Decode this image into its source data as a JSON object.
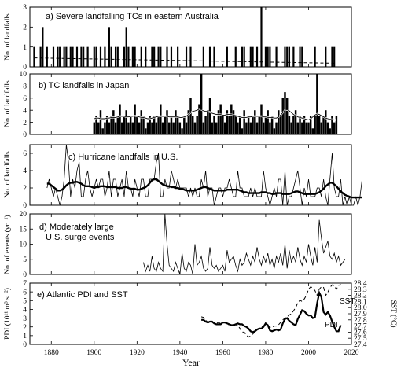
{
  "figure": {
    "x_label": "Year",
    "x_ticks": [
      1880,
      1900,
      1920,
      1940,
      1960,
      1980,
      2000,
      2020
    ],
    "x_range": [
      1870,
      2020
    ]
  },
  "chart_data": [
    {
      "id": "a",
      "type": "bar",
      "title": "a) Severe landfalling TCs in eastern Australia",
      "ylabel": "No. of landfalls",
      "ylim": [
        0,
        3
      ],
      "yticks": [
        0,
        1,
        2,
        3
      ],
      "x": [
        1872,
        1873,
        1874,
        1875,
        1876,
        1877,
        1878,
        1879,
        1880,
        1881,
        1882,
        1883,
        1884,
        1885,
        1886,
        1887,
        1888,
        1889,
        1890,
        1891,
        1892,
        1893,
        1894,
        1895,
        1896,
        1897,
        1898,
        1899,
        1900,
        1901,
        1902,
        1903,
        1904,
        1905,
        1906,
        1907,
        1908,
        1909,
        1910,
        1911,
        1912,
        1913,
        1914,
        1915,
        1916,
        1917,
        1918,
        1919,
        1920,
        1921,
        1922,
        1923,
        1924,
        1925,
        1926,
        1927,
        1928,
        1929,
        1930,
        1931,
        1932,
        1933,
        1934,
        1935,
        1936,
        1937,
        1938,
        1939,
        1940,
        1941,
        1942,
        1943,
        1944,
        1945,
        1946,
        1947,
        1948,
        1949,
        1950,
        1951,
        1952,
        1953,
        1954,
        1955,
        1956,
        1957,
        1958,
        1959,
        1960,
        1961,
        1962,
        1963,
        1964,
        1965,
        1966,
        1967,
        1968,
        1969,
        1970,
        1971,
        1972,
        1973,
        1974,
        1975,
        1976,
        1977,
        1978,
        1979,
        1980,
        1981,
        1982,
        1983,
        1984,
        1985,
        1986,
        1987,
        1988,
        1989,
        1990,
        1991,
        1992,
        1993,
        1994,
        1995,
        1996,
        1997,
        1998,
        1999,
        2000,
        2001,
        2002,
        2003,
        2004,
        2005,
        2006,
        2007,
        2008,
        2009,
        2010,
        2011,
        2012
      ],
      "values": [
        1,
        0,
        0,
        1,
        2,
        0,
        1,
        0,
        0,
        1,
        0,
        1,
        1,
        0,
        1,
        1,
        0,
        1,
        1,
        0,
        1,
        0,
        1,
        1,
        0,
        1,
        0,
        0,
        1,
        1,
        0,
        1,
        0,
        1,
        0,
        2,
        1,
        0,
        1,
        1,
        0,
        0,
        1,
        2,
        1,
        0,
        1,
        1,
        0,
        0,
        1,
        0,
        1,
        0,
        0,
        1,
        1,
        0,
        1,
        1,
        0,
        0,
        1,
        0,
        1,
        0,
        0,
        1,
        0,
        0,
        0,
        1,
        0,
        1,
        0,
        0,
        0,
        0,
        0,
        1,
        0,
        0,
        1,
        0,
        1,
        0,
        0,
        0,
        0,
        0,
        1,
        0,
        0,
        0,
        1,
        0,
        0,
        1,
        1,
        0,
        0,
        1,
        1,
        0,
        1,
        0,
        3,
        0,
        1,
        1,
        1,
        0,
        0,
        1,
        0,
        0,
        0,
        1,
        1,
        1,
        0,
        1,
        0,
        0,
        1,
        1,
        0,
        0,
        0,
        0,
        0,
        1,
        0,
        0,
        0,
        0,
        1,
        0,
        0,
        1,
        1
      ],
      "trend": {
        "x": [
          1872,
          2012
        ],
        "y": [
          0.45,
          0.18
        ]
      }
    },
    {
      "id": "b",
      "type": "bar",
      "title": "b) TC landfalls in Japan",
      "ylabel": "No. of landfalls",
      "ylim": [
        0,
        10
      ],
      "yticks": [
        0,
        2,
        4,
        6,
        8,
        10
      ],
      "x": [
        1900,
        1901,
        1902,
        1903,
        1904,
        1905,
        1906,
        1907,
        1908,
        1909,
        1910,
        1911,
        1912,
        1913,
        1914,
        1915,
        1916,
        1917,
        1918,
        1919,
        1920,
        1921,
        1922,
        1923,
        1924,
        1925,
        1926,
        1927,
        1928,
        1929,
        1930,
        1931,
        1932,
        1933,
        1934,
        1935,
        1936,
        1937,
        1938,
        1939,
        1940,
        1941,
        1942,
        1943,
        1944,
        1945,
        1946,
        1947,
        1948,
        1949,
        1950,
        1951,
        1952,
        1953,
        1954,
        1955,
        1956,
        1957,
        1958,
        1959,
        1960,
        1961,
        1962,
        1963,
        1964,
        1965,
        1966,
        1967,
        1968,
        1969,
        1970,
        1971,
        1972,
        1973,
        1974,
        1975,
        1976,
        1977,
        1978,
        1979,
        1980,
        1981,
        1982,
        1983,
        1984,
        1985,
        1986,
        1987,
        1988,
        1989,
        1990,
        1991,
        1992,
        1993,
        1994,
        1995,
        1996,
        1997,
        1998,
        1999,
        2000,
        2001,
        2002,
        2003,
        2004,
        2005,
        2006,
        2007,
        2008,
        2009,
        2010,
        2011,
        2012,
        2013
      ],
      "values": [
        2,
        3,
        2,
        4,
        1,
        2,
        3,
        2,
        3,
        4,
        2,
        3,
        5,
        2,
        3,
        4,
        2,
        3,
        2,
        5,
        3,
        2,
        4,
        3,
        1,
        2,
        3,
        2,
        3,
        2,
        3,
        5,
        2,
        3,
        4,
        2,
        3,
        2,
        4,
        3,
        2,
        1,
        3,
        2,
        4,
        6,
        3,
        2,
        3,
        5,
        10,
        2,
        3,
        4,
        6,
        2,
        3,
        2,
        4,
        5,
        3,
        2,
        4,
        3,
        5,
        4,
        3,
        2,
        3,
        1,
        4,
        2,
        3,
        2,
        3,
        4,
        2,
        3,
        5,
        2,
        3,
        4,
        2,
        3,
        1,
        2,
        4,
        3,
        6,
        7,
        6,
        3,
        2,
        3,
        4,
        2,
        3,
        2,
        3,
        2,
        2,
        3,
        1,
        3,
        10,
        3,
        2,
        3,
        4,
        2,
        1,
        3,
        2,
        3
      ],
      "smooth": [
        2.6,
        2.7,
        2.7,
        2.6,
        2.6,
        2.6,
        2.7,
        2.7,
        2.8,
        2.8,
        2.8,
        2.9,
        3.0,
        3.0,
        3.0,
        2.9,
        2.9,
        3.0,
        3.0,
        3.1,
        3.0,
        2.9,
        2.8,
        2.8,
        2.7,
        2.6,
        2.6,
        2.7,
        2.8,
        2.9,
        3.0,
        3.0,
        3.0,
        3.0,
        3.0,
        2.9,
        2.9,
        2.9,
        2.9,
        2.9,
        2.8,
        2.8,
        2.9,
        3.0,
        3.3,
        3.6,
        3.8,
        3.9,
        4.0,
        4.2,
        4.1,
        3.9,
        3.8,
        3.8,
        3.7,
        3.5,
        3.4,
        3.3,
        3.3,
        3.3,
        3.2,
        3.2,
        3.3,
        3.3,
        3.3,
        3.2,
        3.1,
        3.0,
        2.9,
        2.8,
        2.8,
        2.8,
        2.9,
        2.9,
        3.0,
        3.0,
        3.0,
        3.0,
        3.0,
        2.9,
        2.9,
        2.8,
        2.8,
        2.8,
        2.7,
        2.7,
        2.9,
        3.2,
        3.6,
        4.0,
        4.1,
        3.9,
        3.6,
        3.3,
        3.1,
        2.9,
        2.8,
        2.7,
        2.6,
        2.5,
        2.4,
        2.6,
        2.9,
        3.2,
        3.4,
        3.3,
        3.1,
        2.9,
        2.7,
        2.6,
        2.5,
        2.5,
        2.4,
        2.4
      ]
    },
    {
      "id": "c",
      "type": "line",
      "title": "c) Hurricane landfalls in U.S.",
      "ylabel": "No. of landfalls",
      "ylim": [
        0,
        7
      ],
      "yticks": [
        0,
        2,
        4,
        6
      ],
      "x_start": 1878,
      "values": [
        2,
        3,
        2,
        1,
        2,
        1,
        0,
        1,
        3,
        7,
        5,
        1,
        3,
        2,
        4,
        5,
        1,
        1,
        3,
        4,
        2,
        1,
        2,
        3,
        2,
        3,
        3,
        1,
        2,
        4,
        1,
        3,
        3,
        1,
        2,
        3,
        1,
        4,
        2,
        2,
        1,
        3,
        2,
        1,
        3,
        3,
        1,
        1,
        3,
        3,
        3,
        5,
        6,
        1,
        1,
        3,
        2,
        2,
        4,
        3,
        2,
        3,
        2,
        2,
        2,
        2,
        1,
        2,
        1,
        2,
        1,
        1,
        3,
        2,
        4,
        1,
        2,
        2,
        0,
        1,
        2,
        2,
        1,
        2,
        2,
        3,
        2,
        1,
        1,
        4,
        2,
        2,
        1,
        1,
        1,
        2,
        1,
        2,
        1,
        1,
        1,
        4,
        2,
        1,
        0,
        1,
        2,
        1,
        3,
        3,
        0,
        4,
        0,
        1,
        1,
        2,
        3,
        4,
        2,
        0,
        2,
        1,
        3,
        1,
        1,
        1,
        2,
        2,
        1,
        3,
        1,
        0,
        3,
        6,
        2,
        1,
        1,
        3,
        0,
        1,
        0,
        1,
        0,
        0,
        1,
        0,
        1,
        3
      ],
      "smooth": [
        2.5,
        2.5,
        2.3,
        2.1,
        1.9,
        1.7,
        1.7,
        1.8,
        2.0,
        2.3,
        2.5,
        2.6,
        2.6,
        2.7,
        2.7,
        2.6,
        2.5,
        2.3,
        2.2,
        2.2,
        2.2,
        2.1,
        2.0,
        2.1,
        2.1,
        2.2,
        2.2,
        2.2,
        2.1,
        2.1,
        2.1,
        2.1,
        2.1,
        2.0,
        2.0,
        2.0,
        2.1,
        2.1,
        2.0,
        1.9,
        1.9,
        1.9,
        1.8,
        1.8,
        1.9,
        2.0,
        2.1,
        2.3,
        2.6,
        2.9,
        3.0,
        3.0,
        2.8,
        2.6,
        2.4,
        2.3,
        2.2,
        2.2,
        2.1,
        2.1,
        2.0,
        2.0,
        1.9,
        1.9,
        1.8,
        1.7,
        1.7,
        1.7,
        1.7,
        1.7,
        1.8,
        1.9,
        2.0,
        2.1,
        2.1,
        2.0,
        1.9,
        1.8,
        1.7,
        1.7,
        1.7,
        1.7,
        1.7,
        1.7,
        1.8,
        1.8,
        1.8,
        1.8,
        1.8,
        1.8,
        1.7,
        1.6,
        1.5,
        1.5,
        1.4,
        1.4,
        1.4,
        1.4,
        1.4,
        1.4,
        1.5,
        1.5,
        1.5,
        1.4,
        1.4,
        1.3,
        1.3,
        1.4,
        1.4,
        1.4,
        1.3,
        1.3,
        1.3,
        1.3,
        1.4,
        1.5,
        1.6,
        1.6,
        1.5,
        1.4,
        1.3,
        1.3,
        1.3,
        1.3,
        1.3,
        1.3,
        1.4,
        1.5,
        1.7,
        1.9,
        2.2,
        2.4,
        2.6,
        2.6,
        2.4,
        2.2,
        1.9,
        1.6,
        1.4,
        1.2,
        1.1,
        1.0,
        0.9,
        0.9,
        0.9,
        0.9,
        0.9,
        0.9
      ]
    },
    {
      "id": "d",
      "type": "line",
      "title": "d) Moderately large U.S. surge events",
      "title_lines": [
        "d) Moderately large",
        "U.S. surge events"
      ],
      "ylabel": "No. of events (yr⁻¹)",
      "ylim": [
        0,
        20
      ],
      "yticks": [
        0,
        5,
        10,
        15,
        20
      ],
      "x_start": 1923,
      "values": [
        4,
        1,
        3,
        1,
        6,
        2,
        1,
        4,
        2,
        1,
        20,
        10,
        3,
        2,
        1,
        4,
        2,
        0,
        7,
        2,
        1,
        4,
        3,
        0,
        10,
        3,
        4,
        6,
        2,
        1,
        2,
        9,
        3,
        2,
        3,
        1,
        2,
        3,
        1,
        8,
        4,
        5,
        6,
        3,
        1,
        5,
        3,
        4,
        7,
        5,
        3,
        6,
        4,
        9,
        5,
        3,
        6,
        4,
        7,
        3,
        5,
        2,
        6,
        4,
        7,
        3,
        10,
        2,
        8,
        4,
        6,
        4,
        9,
        5,
        3,
        6,
        4,
        10,
        6,
        3,
        9,
        4,
        18,
        12,
        7,
        9,
        11,
        6,
        5,
        7,
        4,
        6,
        3,
        4,
        5
      ]
    },
    {
      "id": "e",
      "type": "line",
      "title": "e) Atlantic PDI and SST",
      "ylabel": "PDI (10¹¹ m³ s⁻²)",
      "ylabel_right": "SST (°C)",
      "ylim": [
        0,
        7
      ],
      "yticks": [
        0,
        1,
        2,
        3,
        4,
        5,
        6,
        7
      ],
      "ylim_right": [
        27.4,
        28.4
      ],
      "yticks_right": [
        27.4,
        27.5,
        27.6,
        27.7,
        27.8,
        27.9,
        28.0,
        28.1,
        28.2,
        28.3,
        28.4
      ],
      "series": [
        {
          "name": "PDI",
          "axis": "left",
          "x_start": 1950,
          "values": [
            2.8,
            2.8,
            2.6,
            2.5,
            2.6,
            2.6,
            2.4,
            2.3,
            2.3,
            2.3,
            2.5,
            2.5,
            2.4,
            2.3,
            2.2,
            2.2,
            2.3,
            2.4,
            2.3,
            2.3,
            2.1,
            2.0,
            1.8,
            1.5,
            1.4,
            1.5,
            1.7,
            1.8,
            1.8,
            2.0,
            2.4,
            2.2,
            1.6,
            1.5,
            1.6,
            1.7,
            1.6,
            1.7,
            2.4,
            2.9,
            3.0,
            2.7,
            2.5,
            2.3,
            2.2,
            2.9,
            3.4,
            3.9,
            3.8,
            3.5,
            3.3,
            3.3,
            3.0,
            3.1,
            4.7,
            5.9,
            5.4,
            3.7,
            3.4,
            3.7,
            3.3,
            2.6,
            2.0,
            1.5,
            1.5,
            2.2
          ]
        },
        {
          "name": "SST",
          "axis": "right",
          "x_start": 1950,
          "values": [
            27.85,
            27.84,
            27.8,
            27.76,
            27.75,
            27.77,
            27.75,
            27.74,
            27.76,
            27.74,
            27.75,
            27.76,
            27.73,
            27.72,
            27.71,
            27.7,
            27.72,
            27.71,
            27.66,
            27.6,
            27.6,
            27.55,
            27.52,
            27.54,
            27.57,
            27.6,
            27.64,
            27.67,
            27.68,
            27.7,
            27.72,
            27.7,
            27.68,
            27.68,
            27.7,
            27.7,
            27.72,
            27.76,
            27.8,
            27.83,
            27.85,
            27.88,
            27.9,
            27.95,
            28.0,
            28.08,
            28.12,
            28.1,
            28.14,
            28.2,
            28.3,
            28.34,
            28.32,
            28.28,
            28.2,
            28.3,
            28.34,
            28.33,
            28.2,
            28.25,
            28.33,
            28.37,
            28.35,
            28.3,
            28.36,
            28.38
          ]
        }
      ]
    }
  ]
}
